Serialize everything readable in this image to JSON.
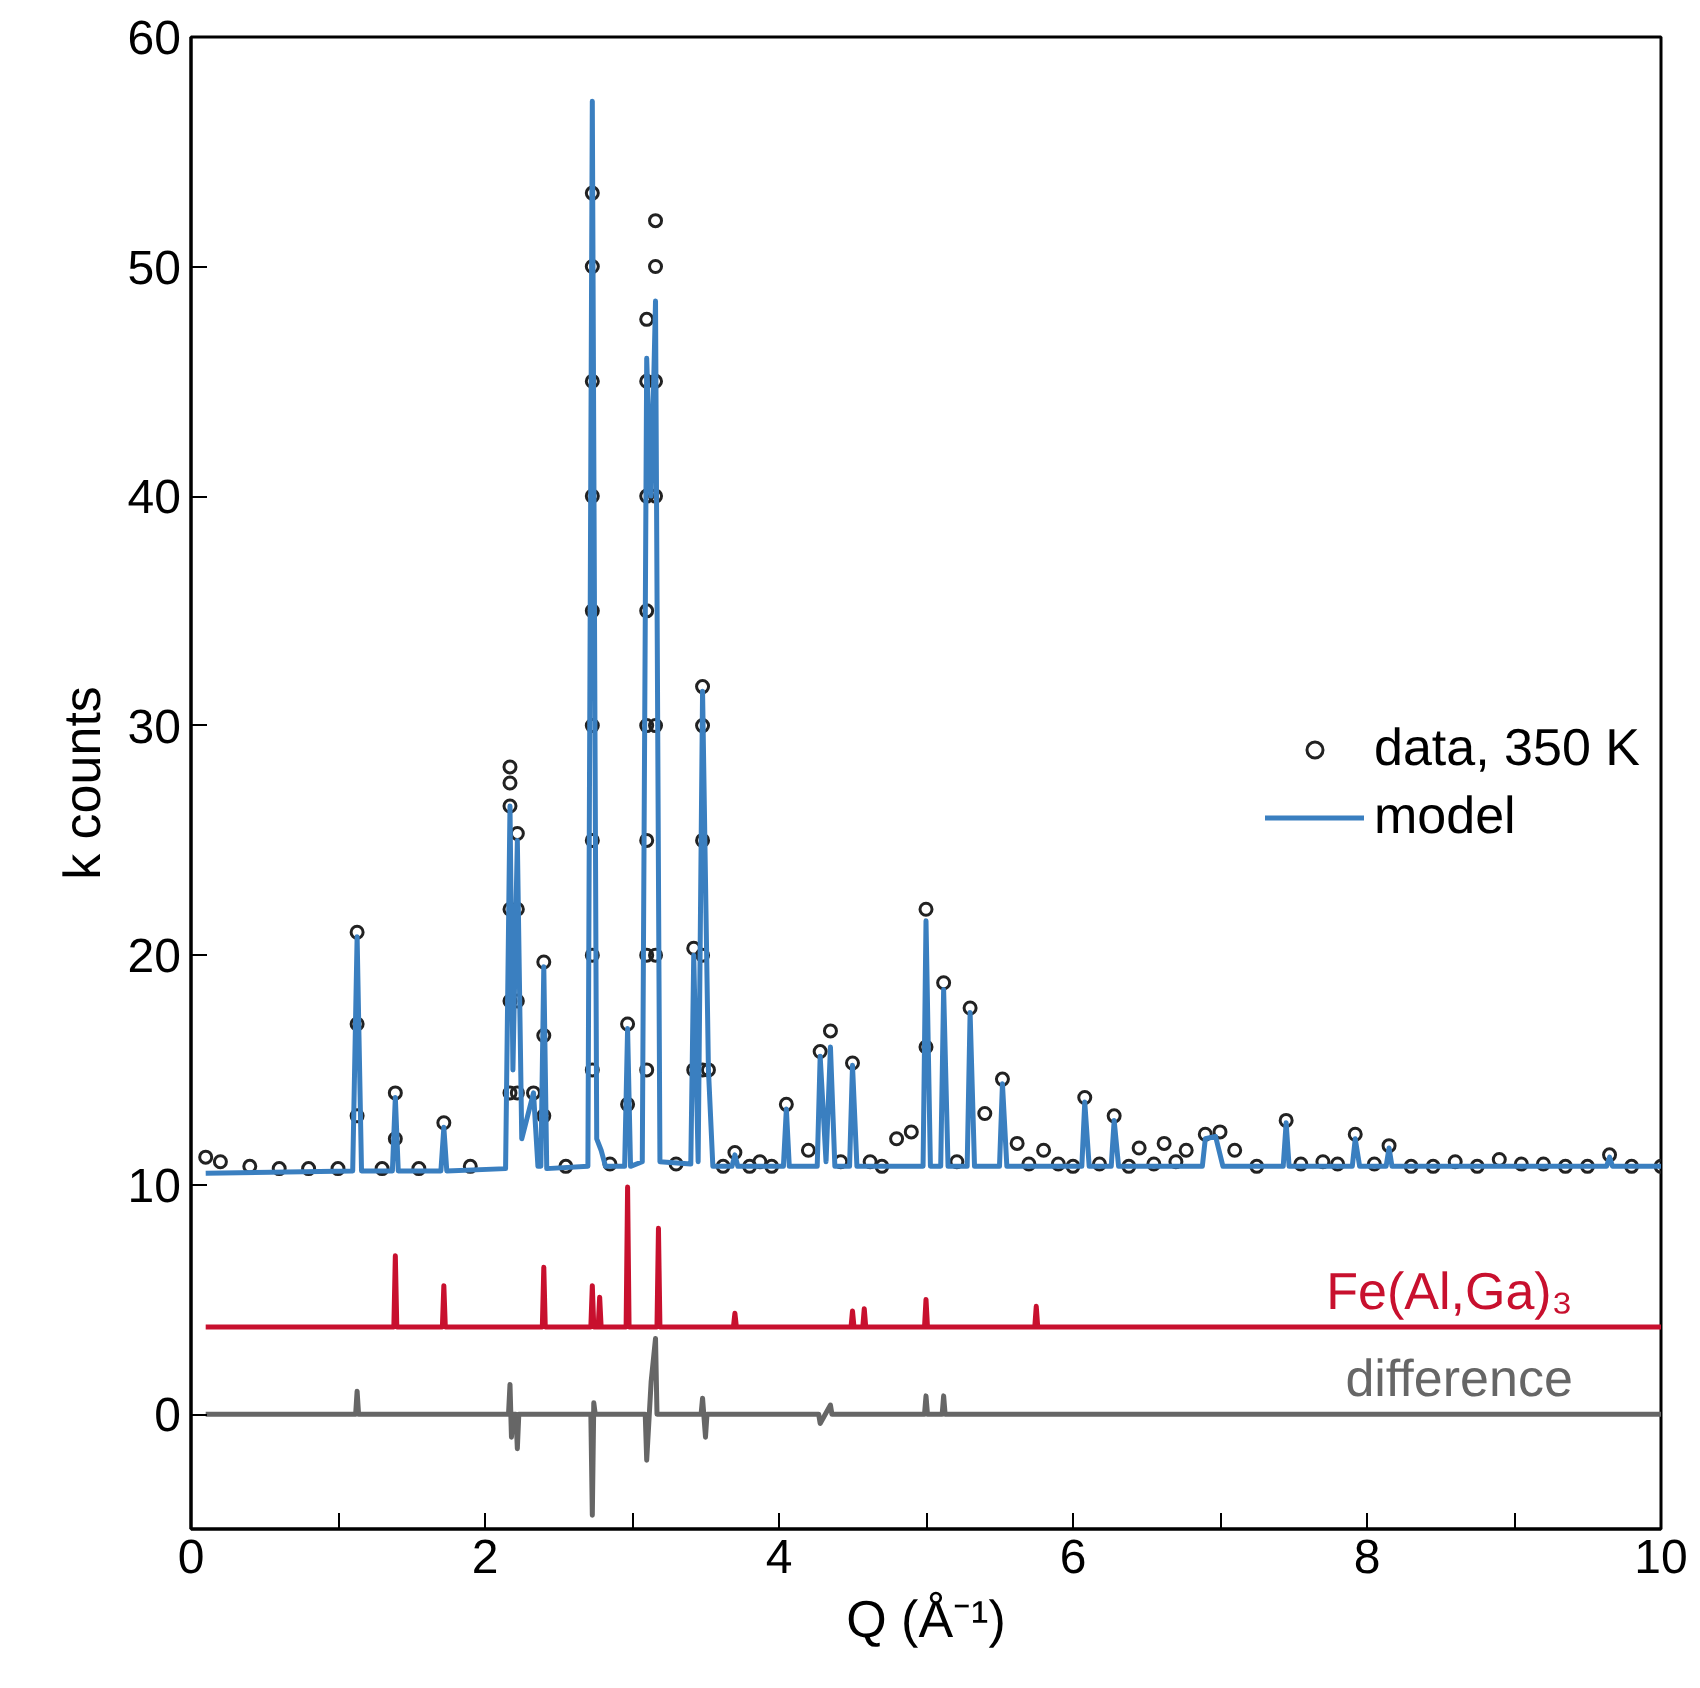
{
  "chart_data": {
    "type": "line",
    "xlabel": "Q (Å⁻¹)",
    "ylabel": "k counts",
    "xlim": [
      0,
      10
    ],
    "ylim": [
      -5,
      60
    ],
    "xticks": [
      0,
      {
        "value": 1,
        "label": null
      },
      2,
      {
        "value": 3,
        "label": null
      },
      4,
      {
        "value": 5,
        "label": null
      },
      6,
      {
        "value": 7,
        "label": null
      },
      8,
      {
        "value": 9,
        "label": null
      },
      10
    ],
    "yticks": [
      0,
      10,
      20,
      30,
      40,
      50,
      60
    ],
    "grid": false,
    "legend": "right",
    "series": [
      {
        "name": "data, 350 K",
        "type": "scatter",
        "marker": "circle",
        "color": "#222222",
        "x": [
          0.1,
          0.2,
          0.4,
          0.6,
          0.8,
          1.0,
          1.13,
          1.13,
          1.13,
          1.3,
          1.39,
          1.39,
          1.55,
          1.72,
          1.9,
          2.17,
          2.17,
          2.17,
          2.17,
          2.17,
          2.17,
          2.22,
          2.22,
          2.22,
          2.22,
          2.33,
          2.4,
          2.4,
          2.4,
          2.55,
          2.73,
          2.73,
          2.73,
          2.73,
          2.73,
          2.73,
          2.73,
          2.73,
          2.73,
          2.85,
          2.97,
          2.97,
          3.1,
          3.1,
          3.1,
          3.1,
          3.1,
          3.1,
          3.1,
          3.1,
          3.16,
          3.16,
          3.16,
          3.16,
          3.16,
          3.16,
          3.3,
          3.42,
          3.42,
          3.48,
          3.48,
          3.48,
          3.48,
          3.48,
          3.52,
          3.62,
          3.7,
          3.8,
          3.87,
          3.95,
          4.05,
          4.2,
          4.28,
          4.35,
          4.42,
          4.5,
          4.62,
          4.7,
          4.8,
          4.9,
          5.0,
          5.0,
          5.12,
          5.21,
          5.3,
          5.4,
          5.52,
          5.62,
          5.7,
          5.8,
          5.9,
          6.0,
          6.08,
          6.18,
          6.28,
          6.38,
          6.45,
          6.55,
          6.62,
          6.7,
          6.77,
          6.9,
          7.0,
          7.1,
          7.25,
          7.45,
          7.55,
          7.7,
          7.8,
          7.92,
          8.05,
          8.15,
          8.3,
          8.45,
          8.6,
          8.75,
          8.9,
          9.05,
          9.2,
          9.35,
          9.5,
          9.65,
          9.8,
          10.0
        ],
        "values": [
          11.2,
          11.0,
          10.8,
          10.7,
          10.7,
          10.7,
          13,
          17,
          21,
          10.7,
          12,
          14,
          10.7,
          12.7,
          10.8,
          14,
          18,
          22,
          26.5,
          27.5,
          28.2,
          14,
          18,
          22,
          25.3,
          14,
          13,
          16.5,
          19.7,
          10.8,
          15,
          20,
          25,
          30,
          35,
          40,
          45,
          50,
          53.2,
          10.9,
          13.5,
          17,
          15,
          20,
          25,
          30,
          35,
          40,
          45,
          47.7,
          20,
          30,
          40,
          45,
          50,
          52,
          10.9,
          15,
          20.3,
          15,
          20,
          25,
          30,
          31.7,
          15,
          10.8,
          11.4,
          10.8,
          11,
          10.8,
          13.5,
          11.5,
          15.8,
          16.7,
          11,
          15.3,
          11,
          10.8,
          12,
          12.3,
          16,
          22,
          18.8,
          11,
          17.7,
          13.1,
          14.6,
          11.8,
          10.9,
          11.5,
          10.9,
          10.8,
          13.8,
          10.9,
          13,
          10.8,
          11.6,
          10.9,
          11.8,
          11,
          11.5,
          12.2,
          12.3,
          11.5,
          10.8,
          12.8,
          10.9,
          11,
          10.9,
          12.2,
          10.9,
          11.7,
          10.8,
          10.8,
          11,
          10.8,
          11.1,
          10.9,
          10.9,
          10.8,
          10.8,
          11.3,
          10.8,
          10.8
        ]
      },
      {
        "name": "model",
        "color": "#3a7fc0",
        "x": [
          0.1,
          1.1,
          1.13,
          1.16,
          1.37,
          1.39,
          1.41,
          1.7,
          1.72,
          1.74,
          2.14,
          2.17,
          2.19,
          2.22,
          2.25,
          2.33,
          2.36,
          2.38,
          2.4,
          2.42,
          2.7,
          2.73,
          2.76,
          2.79,
          2.82,
          2.95,
          2.97,
          2.99,
          3.07,
          3.1,
          3.13,
          3.16,
          3.19,
          3.4,
          3.42,
          3.45,
          3.48,
          3.52,
          3.55,
          3.68,
          3.7,
          3.72,
          4.03,
          4.05,
          4.07,
          4.26,
          4.28,
          4.32,
          4.35,
          4.38,
          4.48,
          4.5,
          4.53,
          4.98,
          5.0,
          5.03,
          5.1,
          5.12,
          5.15,
          5.28,
          5.3,
          5.33,
          5.5,
          5.52,
          5.55,
          6.06,
          6.08,
          6.11,
          6.26,
          6.28,
          6.31,
          6.88,
          6.9,
          6.97,
          7.02,
          7.43,
          7.45,
          7.47,
          7.9,
          7.92,
          7.95,
          8.13,
          8.15,
          8.17,
          9.63,
          9.65,
          9.67,
          10.0
        ],
        "values": [
          10.5,
          10.6,
          20.8,
          10.6,
          10.6,
          13.8,
          10.6,
          10.6,
          12.5,
          10.6,
          10.7,
          26.5,
          15,
          25,
          12,
          14,
          10.8,
          10.8,
          19.5,
          10.7,
          10.8,
          57.2,
          12,
          11.5,
          10.8,
          10.8,
          16.8,
          10.8,
          11,
          46,
          40,
          48.5,
          11,
          10.9,
          20,
          11,
          31.5,
          15,
          10.8,
          10.8,
          11.3,
          10.8,
          10.8,
          13.3,
          10.8,
          10.8,
          15.6,
          11,
          16,
          10.8,
          10.8,
          15.2,
          10.8,
          10.8,
          21.5,
          10.8,
          10.8,
          18.5,
          10.8,
          10.8,
          17.5,
          10.8,
          10.8,
          14.4,
          10.8,
          10.8,
          13.6,
          10.8,
          10.8,
          12.8,
          10.8,
          10.8,
          12,
          12.1,
          10.8,
          10.8,
          12.7,
          10.8,
          10.8,
          12,
          10.8,
          10.8,
          11.6,
          10.8,
          10.8,
          11.2,
          10.8,
          10.8
        ]
      },
      {
        "name": "Fe(Al,Ga)₃",
        "color": "#c8102e",
        "x": [
          0.1,
          1.3,
          1.38,
          1.39,
          1.4,
          1.71,
          1.72,
          1.73,
          2.39,
          2.4,
          2.41,
          2.72,
          2.73,
          2.74,
          2.77,
          2.78,
          2.79,
          2.96,
          2.97,
          2.98,
          3.17,
          3.18,
          3.19,
          3.69,
          3.7,
          3.71,
          4.49,
          4.5,
          4.51,
          4.57,
          4.58,
          4.59,
          4.99,
          5.0,
          5.01,
          5.74,
          5.75,
          5.76,
          10.0
        ],
        "values": [
          3.8,
          3.8,
          3.8,
          6.9,
          3.8,
          3.8,
          5.6,
          3.8,
          3.8,
          6.4,
          3.8,
          3.8,
          5.6,
          3.8,
          3.8,
          5.1,
          3.8,
          3.8,
          9.9,
          3.8,
          3.8,
          8.1,
          3.8,
          3.8,
          4.4,
          3.8,
          3.8,
          4.5,
          3.8,
          3.8,
          4.6,
          3.8,
          3.8,
          5.0,
          3.8,
          3.8,
          4.7,
          3.8,
          3.8
        ]
      },
      {
        "name": "difference",
        "color": "#666666",
        "x": [
          0.1,
          1.12,
          1.13,
          1.14,
          2.16,
          2.17,
          2.18,
          2.19,
          2.21,
          2.22,
          2.23,
          2.72,
          2.73,
          2.74,
          2.75,
          3.09,
          3.1,
          3.13,
          3.16,
          3.17,
          3.47,
          3.48,
          3.5,
          3.51,
          4.27,
          4.28,
          4.35,
          4.36,
          4.99,
          5.0,
          5.01,
          5.11,
          5.12,
          5.13,
          10.0
        ],
        "values": [
          0,
          0,
          1.0,
          0,
          0,
          1.3,
          -1.0,
          0,
          0,
          -1.5,
          0,
          0,
          -4.4,
          0.5,
          0,
          0,
          -2.0,
          1.4,
          3.3,
          0,
          0,
          0.7,
          -1.0,
          0,
          0,
          -0.4,
          0.4,
          0,
          0,
          0.8,
          0,
          0,
          0.8,
          0,
          0
        ]
      }
    ]
  }
}
